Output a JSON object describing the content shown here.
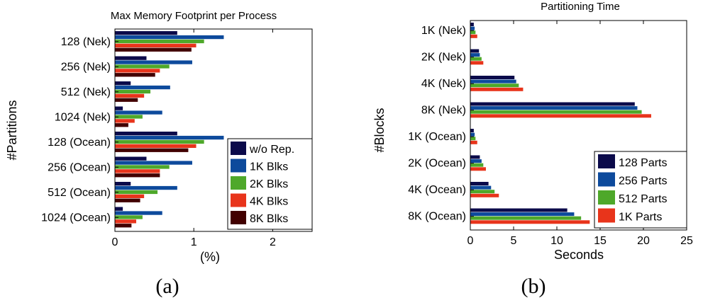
{
  "chart_data": [
    {
      "type": "bar",
      "orientation": "horizontal",
      "title": "Max Memory Footprint per Process",
      "xlabel": "(%)",
      "ylabel": "#Partitions",
      "caption": "(a)",
      "xlim": [
        0,
        2.5
      ],
      "xticks": [
        0,
        1,
        2
      ],
      "legend_position": "bottom-right",
      "categories": [
        "128 (Nek)",
        "256 (Nek)",
        "512 (Nek)",
        "1024 (Nek)",
        "128 (Ocean)",
        "256 (Ocean)",
        "512 (Ocean)",
        "1024 (Ocean)"
      ],
      "series": [
        {
          "name": "w/o Rep.",
          "color": "#0b0a4a",
          "values": [
            0.79,
            0.4,
            0.2,
            0.1,
            0.79,
            0.4,
            0.2,
            0.1
          ]
        },
        {
          "name": "1K Blks",
          "color": "#0d4a9c",
          "values": [
            1.38,
            0.98,
            0.7,
            0.6,
            1.38,
            0.98,
            0.79,
            0.6
          ]
        },
        {
          "name": "2K Blks",
          "color": "#4ea82a",
          "values": [
            1.13,
            0.69,
            0.45,
            0.35,
            1.13,
            0.69,
            0.54,
            0.35
          ]
        },
        {
          "name": "4K Blks",
          "color": "#e8341b",
          "values": [
            1.03,
            0.57,
            0.37,
            0.25,
            1.03,
            0.57,
            0.37,
            0.27
          ]
        },
        {
          "name": "8K Blks",
          "color": "#420000",
          "values": [
            0.97,
            0.51,
            0.29,
            0.17,
            0.93,
            0.57,
            0.32,
            0.21
          ]
        }
      ]
    },
    {
      "type": "bar",
      "orientation": "horizontal",
      "title": "Partitioning Time",
      "xlabel": "Seconds",
      "ylabel": "#Blocks",
      "caption": "(b)",
      "xlim": [
        0,
        25
      ],
      "xticks": [
        0,
        5,
        10,
        15,
        20,
        25
      ],
      "legend_position": "bottom-right",
      "categories": [
        "1K (Nek)",
        "2K (Nek)",
        "4K (Nek)",
        "8K (Nek)",
        "1K (Ocean)",
        "2K (Ocean)",
        "4K (Ocean)",
        "8K (Ocean)"
      ],
      "series": [
        {
          "name": "128 Parts",
          "color": "#0b0a4a",
          "values": [
            0.4,
            1.0,
            5.1,
            19.0,
            0.4,
            1.1,
            2.1,
            11.2
          ]
        },
        {
          "name": "256 Parts",
          "color": "#0d4a9c",
          "values": [
            0.5,
            1.1,
            5.3,
            19.3,
            0.5,
            1.3,
            2.4,
            12.0
          ]
        },
        {
          "name": "512 Parts",
          "color": "#4ea82a",
          "values": [
            0.6,
            1.3,
            5.6,
            19.8,
            0.6,
            1.5,
            2.8,
            12.8
          ]
        },
        {
          "name": "1K Parts",
          "color": "#e8341b",
          "values": [
            0.8,
            1.5,
            6.1,
            20.9,
            0.8,
            1.8,
            3.3,
            13.8
          ]
        }
      ]
    }
  ]
}
